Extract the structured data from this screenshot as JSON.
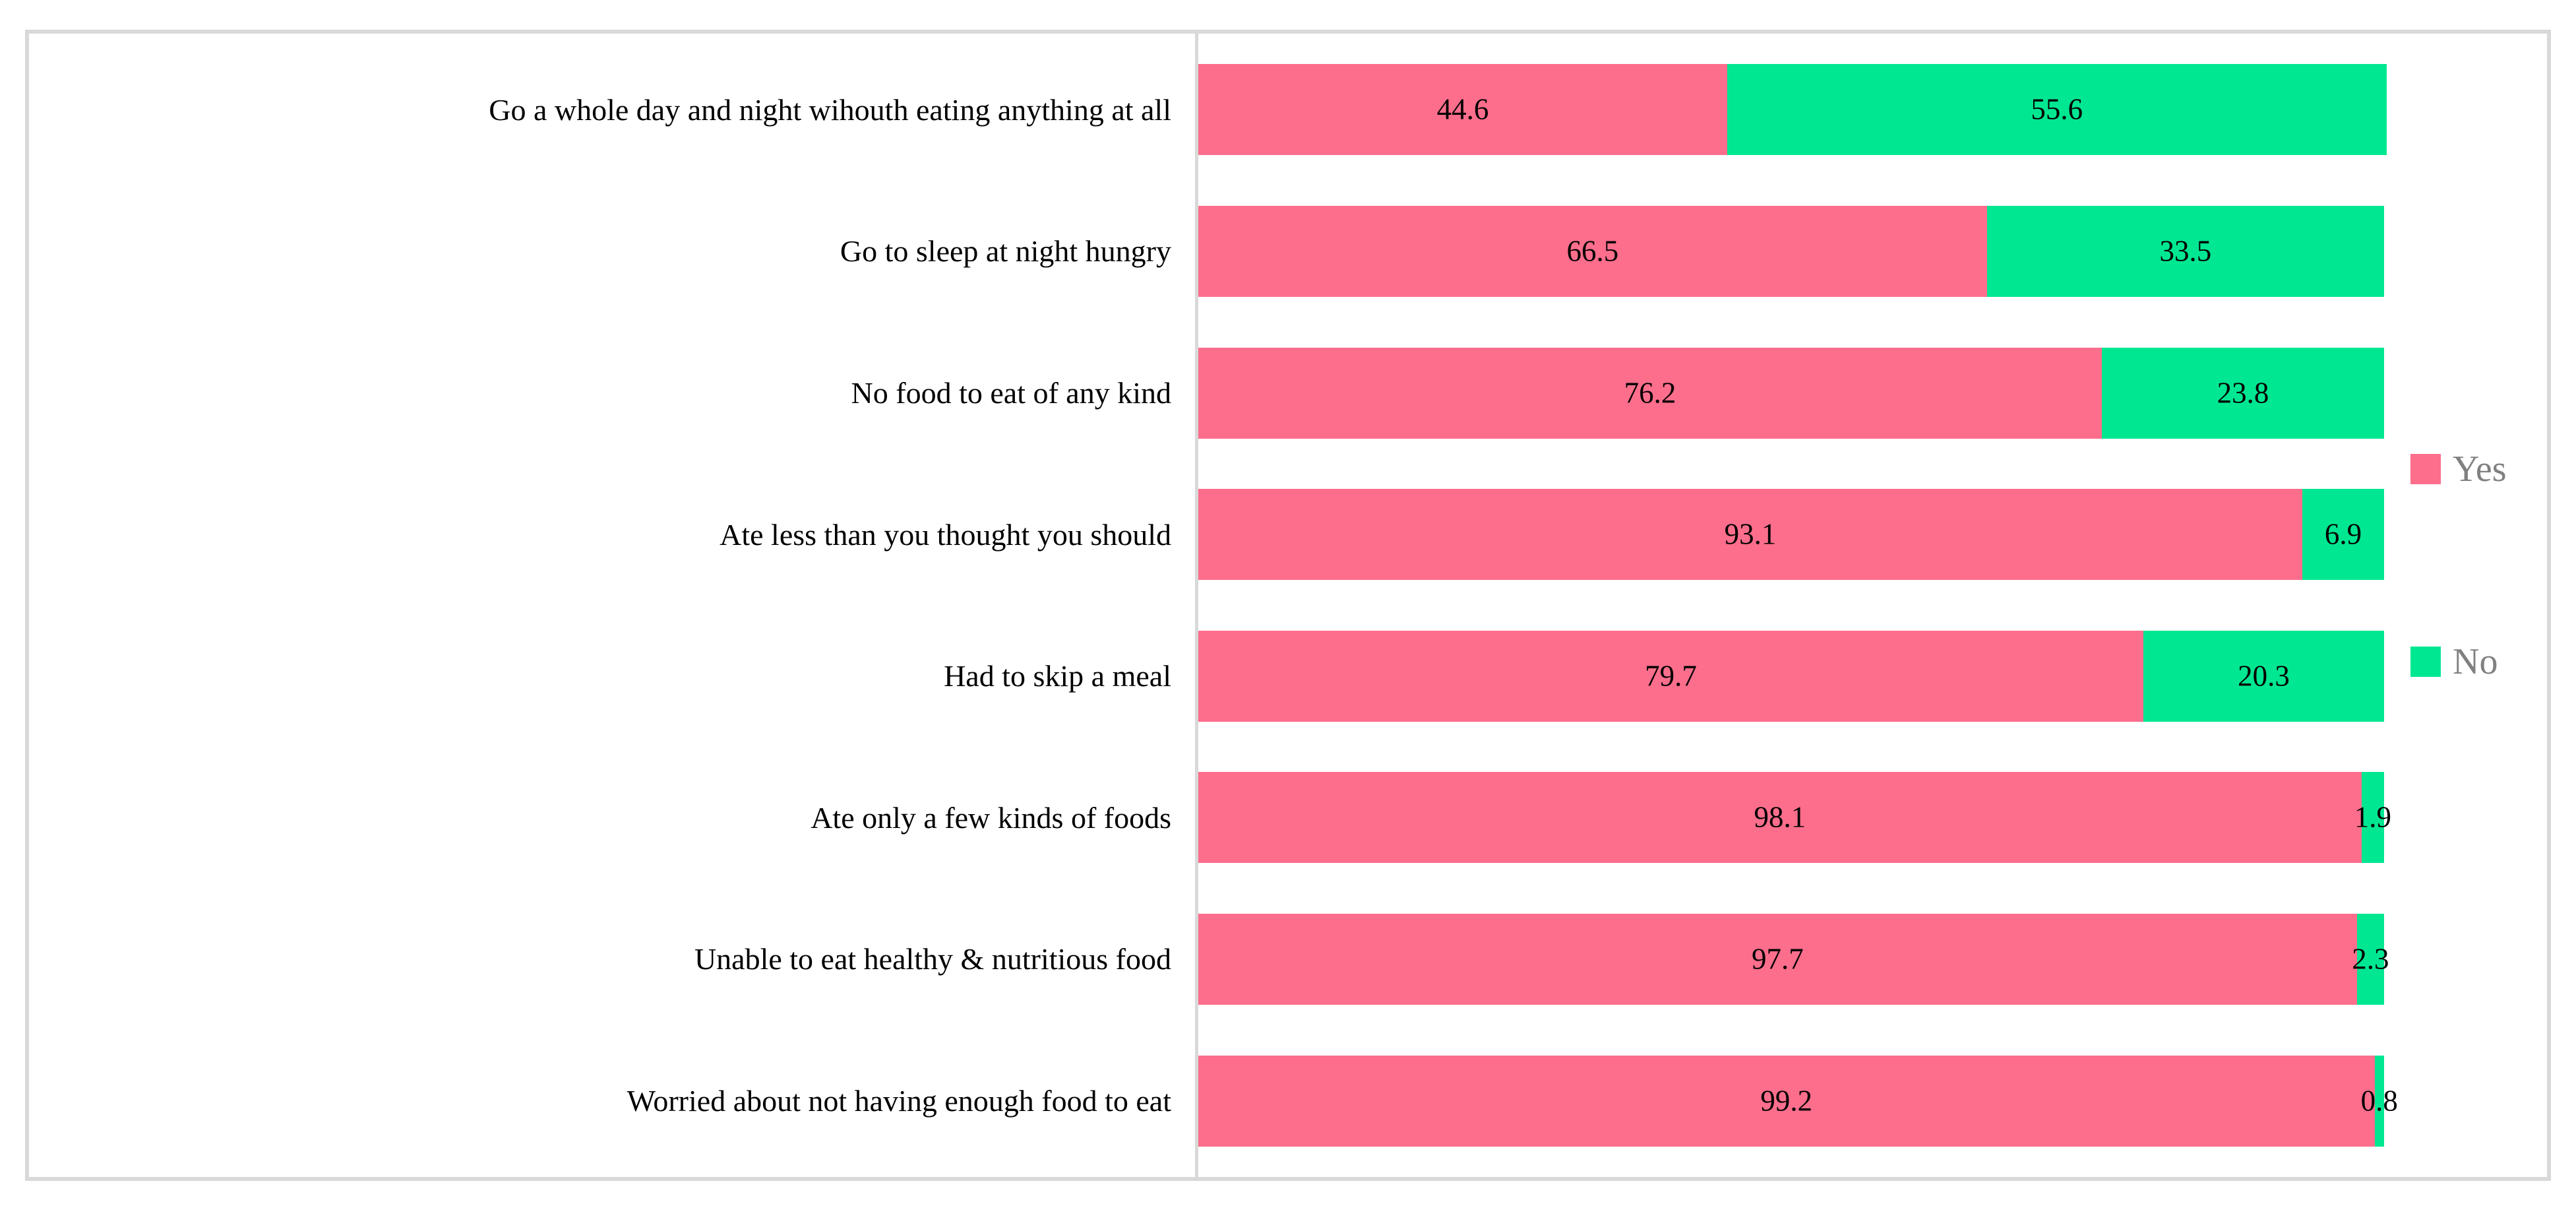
{
  "figure": {
    "background": "#FFFFFF",
    "border_color": "#D9D9D9"
  },
  "legend": {
    "position": "right",
    "text_color": "#808080",
    "items": [
      {
        "label": "Yes",
        "color": "#FC6E8C"
      },
      {
        "label": "No",
        "color": "#00E791"
      }
    ]
  },
  "chart_data": {
    "type": "bar",
    "orientation": "horizontal",
    "stacked": true,
    "title": "",
    "xlabel": "",
    "ylabel": "",
    "xlim": [
      0,
      100
    ],
    "grid": false,
    "axis_color": "#D9D9D9",
    "value_labels": "inside-center",
    "legend_position": "right",
    "categories": [
      "Go a whole day and night wihouth eating anything at all",
      "Go to sleep at night hungry",
      "No food to eat of any kind",
      "Ate less than you thought you should",
      "Had to skip a meal",
      "Ate only a few kinds of foods",
      "Unable to eat healthy & nutritious food",
      "Worried about not having enough food to eat"
    ],
    "series": [
      {
        "name": "Yes",
        "color": "#FC6E8C",
        "values": [
          44.6,
          66.5,
          76.2,
          93.1,
          79.7,
          98.1,
          97.7,
          99.2
        ]
      },
      {
        "name": "No",
        "color": "#00E791",
        "values": [
          55.6,
          33.5,
          23.8,
          6.9,
          20.3,
          1.9,
          2.3,
          0.8
        ]
      }
    ]
  }
}
